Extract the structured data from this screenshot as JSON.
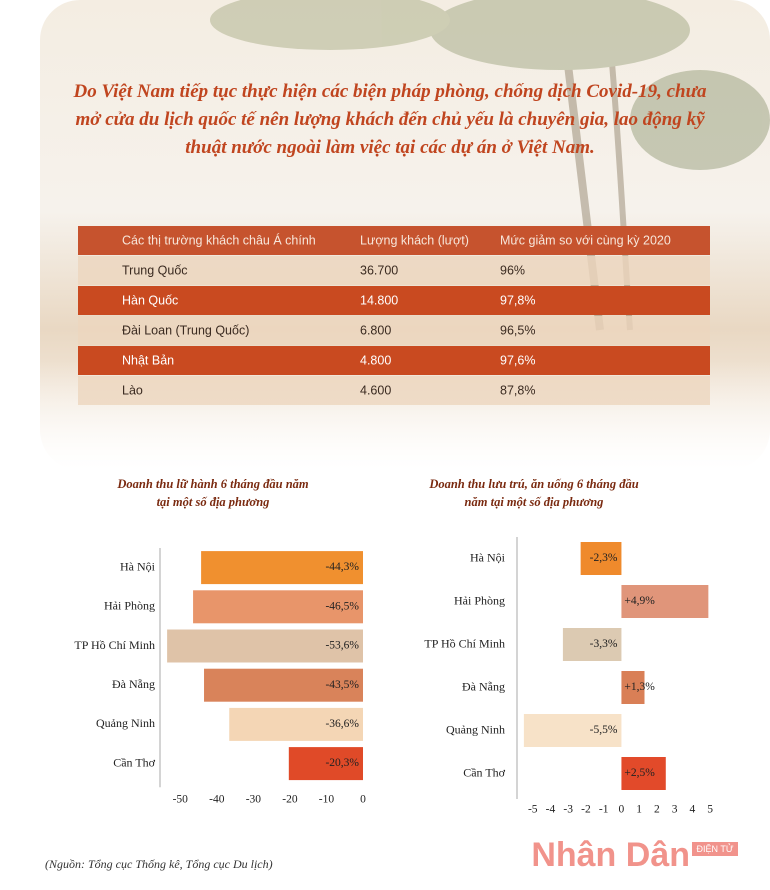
{
  "intro": "Do Việt Nam tiếp tục thực hiện các biện pháp phòng, chống dịch Covid-19, chưa mở cửa du lịch quốc tế nên lượng khách đến chủ yếu là chuyên gia, lao động kỹ thuật nước ngoài làm việc tại các dự án ở Việt Nam.",
  "table": {
    "header": [
      "Các thị trường khách châu Á chính",
      "Lượng khách (lượt)",
      "Mức giảm so với cùng kỳ 2020"
    ],
    "rows": [
      [
        "Trung Quốc",
        "36.700",
        "96%"
      ],
      [
        "Hàn Quốc",
        "14.800",
        "97,8%"
      ],
      [
        "Đài Loan (Trung Quốc)",
        "6.800",
        "96,5%"
      ],
      [
        "Nhật Bản",
        "4.800",
        "97,6%"
      ],
      [
        "Lào",
        "4.600",
        "87,8%"
      ]
    ]
  },
  "chart_data": [
    {
      "type": "hbar",
      "title": "Doanh thu lữ hành 6 tháng đầu năm tại một số địa phương",
      "categories": [
        "Hà Nội",
        "Hải Phòng",
        "TP Hồ Chí Minh",
        "Đà Nẵng",
        "Quảng Ninh",
        "Cần Thơ"
      ],
      "values": [
        -44.3,
        -46.5,
        -53.6,
        -43.5,
        -36.6,
        -20.3
      ],
      "value_labels": [
        "-44,3%",
        "-46,5%",
        "-53,6%",
        "-43,5%",
        "-36,6%",
        "-20,3%"
      ],
      "colors": [
        "#f0902f",
        "#e8956a",
        "#dfc3a8",
        "#d9835a",
        "#f4d6b5",
        "#e04a28"
      ],
      "xlim": [
        -55,
        0
      ],
      "xticks": [
        -50,
        -40,
        -30,
        -20,
        -10,
        0
      ]
    },
    {
      "type": "hbar",
      "title": "Doanh thu lưu trú, ăn uống 6 tháng đầu năm tại một số địa phương",
      "categories": [
        "Hà Nội",
        "Hải Phòng",
        "TP Hồ Chí Minh",
        "Đà Nẵng",
        "Quảng Ninh",
        "Cần Thơ"
      ],
      "values": [
        -2.3,
        4.9,
        -3.3,
        1.3,
        -5.5,
        2.5
      ],
      "value_labels": [
        "-2,3%",
        "+4,9%",
        "-3,3%",
        "+1,3%",
        "-5,5%",
        "+2,5%"
      ],
      "colors": [
        "#ef8a2c",
        "#e0957a",
        "#dccab2",
        "#d97f56",
        "#f7e2c8",
        "#e24a2a"
      ],
      "xlim": [
        -6,
        5.5
      ],
      "xticks": [
        -5,
        -4,
        -3,
        -2,
        -1,
        0,
        1,
        2,
        3,
        4,
        5
      ]
    }
  ],
  "source": "(Nguồn: Tổng cục Thống kê, Tổng cục Du lịch)",
  "logo": {
    "name": "Nhân Dân",
    "tag": "ĐIỆN TỬ"
  }
}
